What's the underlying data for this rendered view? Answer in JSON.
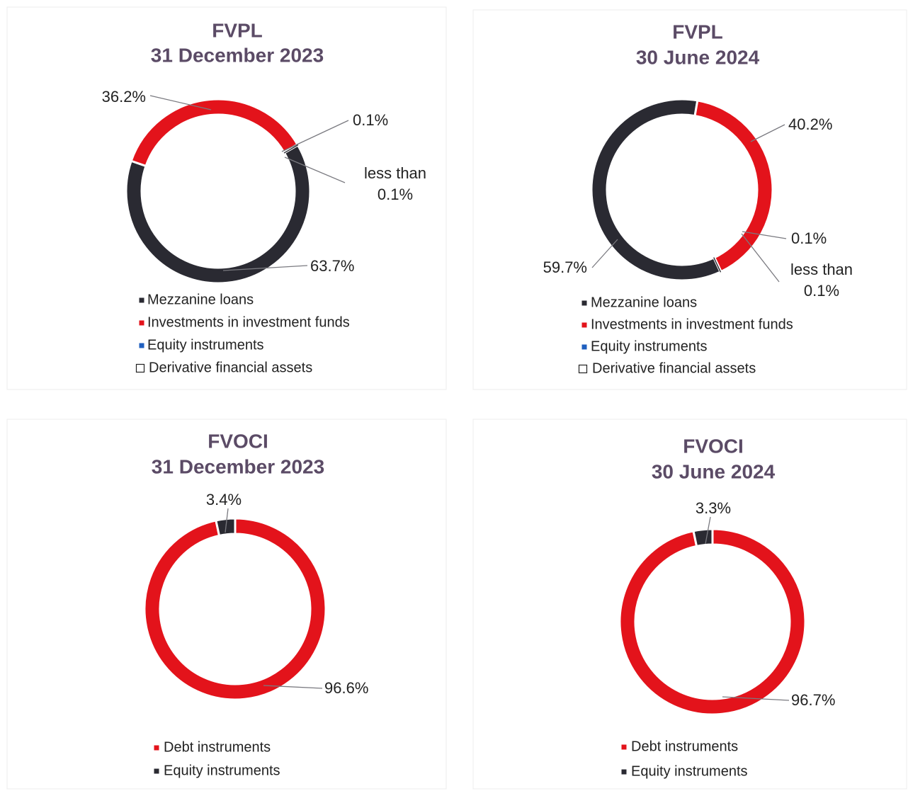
{
  "chart_data": [
    {
      "type": "pie",
      "title": "FVPL",
      "subtitle": "31 December 2023",
      "categories": [
        "Mezzanine loans",
        "Investments in investment funds",
        "Equity instruments",
        "Derivative financial assets"
      ],
      "values": [
        63.7,
        36.2,
        0.1,
        0.05
      ],
      "value_labels": [
        "63.7%",
        "36.2%",
        "0.1%",
        "less than 0.1%"
      ],
      "colors": [
        "#2a2a32",
        "#e3131b",
        "#1f5fbf",
        "#ffffff"
      ]
    },
    {
      "type": "pie",
      "title": "FVPL",
      "subtitle": "30 June 2024",
      "categories": [
        "Mezzanine loans",
        "Investments in investment funds",
        "Equity instruments",
        "Derivative financial assets"
      ],
      "values": [
        59.7,
        40.2,
        0.1,
        0.05
      ],
      "value_labels": [
        "59.7%",
        "40.2%",
        "0.1%",
        "less than 0.1%"
      ],
      "colors": [
        "#2a2a32",
        "#e3131b",
        "#1f5fbf",
        "#ffffff"
      ]
    },
    {
      "type": "pie",
      "title": "FVOCI",
      "subtitle": "31 December 2023",
      "categories": [
        "Debt instruments",
        "Equity instruments"
      ],
      "values": [
        96.6,
        3.4
      ],
      "value_labels": [
        "96.6%",
        "3.4%"
      ],
      "colors": [
        "#e3131b",
        "#2a2a32"
      ]
    },
    {
      "type": "pie",
      "title": "FVOCI",
      "subtitle": "30 June 2024",
      "categories": [
        "Debt instruments",
        "Equity instruments"
      ],
      "values": [
        96.7,
        3.3
      ],
      "value_labels": [
        "96.7%",
        "3.3%"
      ],
      "colors": [
        "#e3131b",
        "#2a2a32"
      ]
    }
  ]
}
